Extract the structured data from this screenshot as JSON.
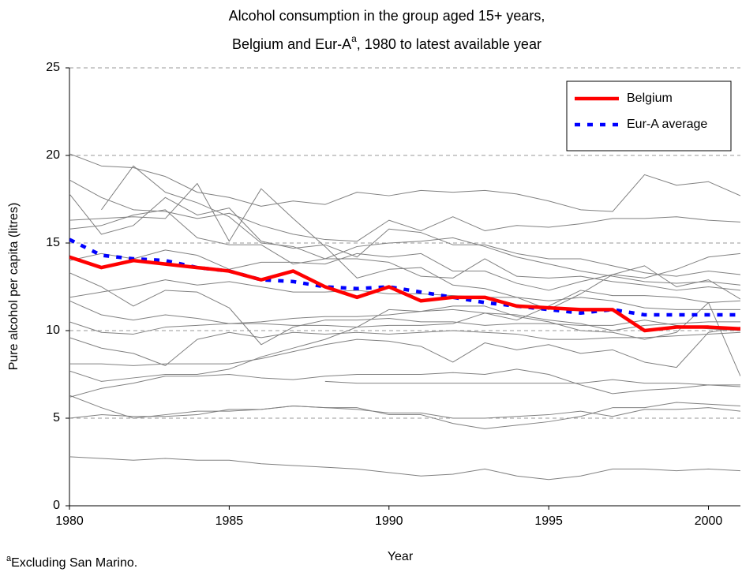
{
  "chart_data": {
    "type": "line",
    "title_line1": "Alcohol consumption in the group aged 15+ years,",
    "title_line2_start": "Belgium and Eur-A",
    "title_superscript": "a",
    "title_line2_end": ", 1980 to latest available year",
    "x_label": "Year",
    "y_label": "Pure alcohol per capita (litres)",
    "footnote_marker": "a",
    "footnote": "Excluding San Marino.",
    "x": [
      1980,
      1981,
      1982,
      1983,
      1984,
      1985,
      1986,
      1987,
      1988,
      1989,
      1990,
      1991,
      1992,
      1993,
      1994,
      1995,
      1996,
      1997,
      1998,
      1999,
      2000,
      2001
    ],
    "xlim": [
      1980,
      2001
    ],
    "xticks": [
      1980,
      1985,
      1990,
      1995,
      2000
    ],
    "ylim": [
      0,
      25
    ],
    "yticks": [
      0,
      5,
      10,
      15,
      20,
      25
    ],
    "grid": true,
    "legend_position": "upper right",
    "series": [
      {
        "color": "#808080",
        "values": [
          20.1,
          19.4,
          19.3,
          18.8,
          17.9,
          17.6,
          17.1,
          17.4,
          17.2,
          17.9,
          17.7,
          18.0,
          17.9,
          18.0,
          17.8,
          17.4,
          16.9,
          16.8,
          18.9,
          18.3,
          18.5,
          17.7
        ]
      },
      {
        "color": "#808080",
        "values": [
          18.6,
          17.6,
          16.9,
          16.8,
          16.4,
          16.7,
          16.0,
          15.5,
          15.2,
          15.1,
          16.3,
          15.7,
          16.5,
          15.7,
          16.0,
          15.9,
          16.1,
          16.4,
          16.4,
          16.5,
          16.3,
          16.2
        ]
      },
      {
        "color": "#808080",
        "values": [
          null,
          16.9,
          19.4,
          17.9,
          17.3,
          16.5,
          15.0,
          14.8,
          14.1,
          14.8,
          15.0,
          15.1,
          15.3,
          14.8,
          14.2,
          13.8,
          13.4,
          13.1,
          12.8,
          12.7,
          12.8,
          12.6
        ]
      },
      {
        "color": "#808080",
        "values": [
          17.8,
          15.5,
          16.0,
          17.6,
          16.6,
          17.0,
          15.1,
          14.7,
          14.9,
          14.2,
          15.8,
          15.6,
          14.9,
          14.9,
          14.4,
          14.1,
          14.1,
          13.7,
          13.3,
          13.1,
          13.4,
          13.2
        ]
      },
      {
        "color": "#808080",
        "values": [
          16.3,
          16.4,
          16.5,
          16.4,
          18.4,
          15.1,
          18.1,
          16.4,
          14.8,
          13.0,
          13.5,
          13.6,
          12.6,
          12.4,
          11.9,
          11.2,
          12.1,
          13.2,
          13.7,
          12.5,
          12.9,
          11.8
        ]
      },
      {
        "color": "#808080",
        "values": [
          15.8,
          16.0,
          16.6,
          16.9,
          15.3,
          14.9,
          14.9,
          13.8,
          14.1,
          14.1,
          13.9,
          13.1,
          13.0,
          14.1,
          13.1,
          13.0,
          13.1,
          12.8,
          12.6,
          12.3,
          12.5,
          12.3
        ]
      },
      {
        "color": "#808080",
        "values": [
          14.0,
          14.4,
          14.1,
          14.6,
          14.3,
          13.5,
          13.9,
          13.9,
          13.8,
          14.4,
          14.2,
          14.4,
          13.4,
          13.4,
          12.7,
          12.3,
          12.8,
          13.2,
          13.0,
          13.5,
          14.2,
          14.4
        ]
      },
      {
        "color": "#808080",
        "values": [
          13.3,
          12.5,
          11.4,
          12.3,
          12.2,
          11.3,
          9.2,
          10.2,
          10.6,
          10.6,
          10.7,
          10.5,
          10.5,
          10.3,
          10.4,
          10.4,
          10.3,
          10.3,
          10.6,
          10.3,
          10.1,
          10.0
        ]
      },
      {
        "color": "#808080",
        "values": [
          11.9,
          12.2,
          12.5,
          12.9,
          12.6,
          12.8,
          12.5,
          12.2,
          12.2,
          12.3,
          12.1,
          12.1,
          12.0,
          11.9,
          11.9,
          11.7,
          11.9,
          11.7,
          11.3,
          11.2,
          11.2,
          11.2
        ]
      },
      {
        "color": "#808080",
        "values": [
          11.7,
          10.9,
          10.6,
          10.9,
          10.7,
          10.4,
          10.4,
          10.3,
          10.3,
          10.2,
          10.3,
          10.3,
          10.4,
          11.0,
          10.6,
          11.4,
          12.3,
          12.0,
          12.0,
          11.9,
          11.6,
          11.7
        ]
      },
      {
        "color": "#808080",
        "values": [
          10.5,
          9.9,
          9.8,
          10.2,
          10.3,
          10.4,
          10.5,
          10.7,
          10.8,
          10.8,
          10.9,
          11.1,
          11.4,
          11.4,
          10.8,
          10.5,
          10.0,
          9.9,
          9.5,
          9.9,
          11.6,
          7.4
        ]
      },
      {
        "color": "#808080",
        "values": [
          9.6,
          9.0,
          8.7,
          8.0,
          9.5,
          9.9,
          9.6,
          9.9,
          9.8,
          9.9,
          9.8,
          9.9,
          10.0,
          9.9,
          9.8,
          9.5,
          9.5,
          9.6,
          9.6,
          9.7,
          9.8,
          9.9
        ]
      },
      {
        "color": "#808080",
        "values": [
          8.1,
          8.1,
          8.0,
          8.1,
          8.1,
          8.1,
          8.4,
          8.8,
          9.2,
          9.5,
          9.4,
          9.1,
          8.2,
          9.3,
          8.9,
          9.2,
          8.7,
          8.9,
          8.2,
          7.9,
          9.9,
          10.2
        ]
      },
      {
        "color": "#808080",
        "values": [
          7.7,
          7.1,
          7.3,
          7.5,
          7.5,
          7.8,
          8.5,
          9.0,
          9.5,
          10.2,
          11.2,
          11.1,
          11.2,
          11.0,
          10.9,
          10.6,
          10.4,
          10.0,
          10.3,
          10.4,
          10.5,
          10.5
        ]
      },
      {
        "color": "#808080",
        "values": [
          6.2,
          6.7,
          7.0,
          7.4,
          7.4,
          7.5,
          7.3,
          7.2,
          7.4,
          7.5,
          7.5,
          7.5,
          7.6,
          7.5,
          7.8,
          7.5,
          6.9,
          6.4,
          6.6,
          6.7,
          6.9,
          6.8
        ]
      },
      {
        "color": "#808080",
        "values": [
          null,
          null,
          null,
          null,
          null,
          null,
          null,
          null,
          7.1,
          7.0,
          7.0,
          7.0,
          7.0,
          7.0,
          7.0,
          7.0,
          7.0,
          7.2,
          7.0,
          7.0,
          6.9,
          6.9
        ]
      },
      {
        "color": "#808080",
        "values": [
          6.3,
          5.6,
          5.0,
          5.2,
          5.4,
          5.4,
          5.5,
          5.7,
          5.6,
          5.6,
          5.2,
          5.2,
          4.7,
          4.4,
          4.6,
          4.8,
          5.1,
          5.6,
          5.6,
          5.9,
          5.8,
          5.7
        ]
      },
      {
        "color": "#808080",
        "values": [
          5.0,
          5.2,
          5.1,
          5.1,
          5.2,
          5.5,
          5.5,
          5.7,
          5.6,
          5.5,
          5.3,
          5.3,
          5.0,
          5.0,
          5.1,
          5.2,
          5.4,
          5.1,
          5.5,
          5.5,
          5.6,
          5.4
        ]
      },
      {
        "color": "#808080",
        "values": [
          2.8,
          2.7,
          2.6,
          2.7,
          2.6,
          2.6,
          2.4,
          2.3,
          2.2,
          2.1,
          1.9,
          1.7,
          1.8,
          2.1,
          1.7,
          1.5,
          1.7,
          2.1,
          2.1,
          2.0,
          2.1,
          2.0
        ]
      },
      {
        "name": "Eur-A average",
        "color": "#0000ff",
        "line_style": "dotted",
        "values": [
          15.2,
          14.3,
          14.1,
          14.0,
          13.6,
          13.4,
          12.9,
          12.8,
          12.5,
          12.4,
          12.5,
          12.2,
          11.9,
          11.6,
          11.4,
          11.2,
          11.0,
          11.2,
          10.9,
          10.9,
          10.9,
          10.9
        ]
      },
      {
        "name": "Belgium",
        "color": "#ff0000",
        "line_style": "solid",
        "values": [
          14.2,
          13.6,
          14.0,
          13.8,
          13.6,
          13.4,
          12.9,
          13.4,
          12.5,
          11.9,
          12.5,
          11.7,
          11.9,
          11.9,
          11.4,
          11.3,
          11.2,
          11.2,
          10.0,
          10.2,
          10.2,
          10.1
        ]
      }
    ]
  }
}
